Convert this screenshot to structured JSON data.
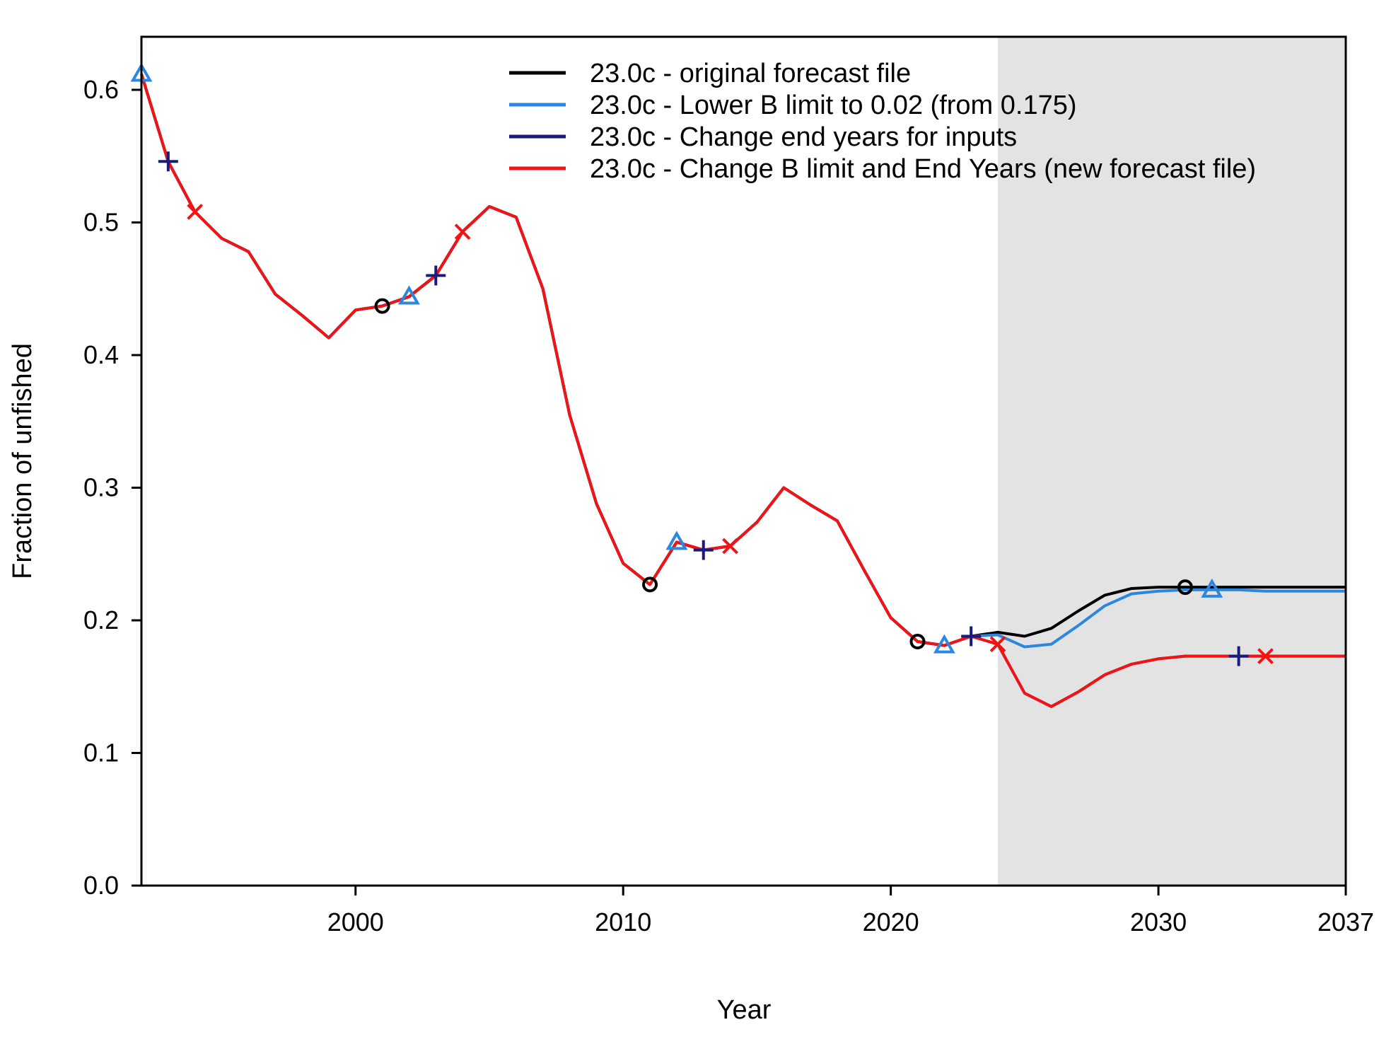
{
  "chart_data": {
    "type": "line",
    "xlabel": "Year",
    "ylabel": "Fraction of unfished",
    "xlim": [
      1992,
      2037
    ],
    "ylim": [
      0,
      0.64
    ],
    "xticks": [
      2000,
      2010,
      2020,
      2030,
      2037
    ],
    "xtick_labels": [
      "2000",
      "2010",
      "2020",
      "2030",
      "2037"
    ],
    "yticks": [
      0.0,
      0.1,
      0.2,
      0.3,
      0.4,
      0.5,
      0.6
    ],
    "ytick_labels": [
      "0.0",
      "0.1",
      "0.2",
      "0.3",
      "0.4",
      "0.5",
      "0.6"
    ],
    "forecast_shading": {
      "from": 2024,
      "to": 2037,
      "color": "#e3e3e3"
    },
    "legend_position": "top-right",
    "grid": false,
    "x": [
      1992,
      1993,
      1994,
      1995,
      1996,
      1997,
      1998,
      1999,
      2000,
      2001,
      2002,
      2003,
      2004,
      2005,
      2006,
      2007,
      2008,
      2009,
      2010,
      2011,
      2012,
      2013,
      2014,
      2015,
      2016,
      2017,
      2018,
      2019,
      2020,
      2021,
      2022,
      2023,
      2024,
      2025,
      2026,
      2027,
      2028,
      2029,
      2030,
      2031,
      2032,
      2033,
      2034,
      2035,
      2036,
      2037
    ],
    "series": [
      {
        "name": "23.0c - original forecast file",
        "color": "#000000",
        "marker": "circle",
        "marker_years": [
          2001,
          2011,
          2021,
          2031
        ],
        "values": [
          0.612,
          0.546,
          0.508,
          0.488,
          0.478,
          0.446,
          0.43,
          0.413,
          0.434,
          0.437,
          0.444,
          0.46,
          0.493,
          0.512,
          0.504,
          0.45,
          0.355,
          0.288,
          0.243,
          0.227,
          0.259,
          0.253,
          0.256,
          0.274,
          0.3,
          0.287,
          0.275,
          0.238,
          0.202,
          0.184,
          0.181,
          0.188,
          0.191,
          0.188,
          0.194,
          0.207,
          0.219,
          0.224,
          0.225,
          0.225,
          0.225,
          0.225,
          0.225,
          0.225,
          0.225,
          0.225
        ]
      },
      {
        "name": "23.0c - Lower B limit to 0.02 (from 0.175)",
        "color": "#2c87df",
        "marker": "triangle",
        "marker_years": [
          1992,
          2002,
          2012,
          2022,
          2032
        ],
        "values": [
          0.612,
          0.546,
          0.508,
          0.488,
          0.478,
          0.446,
          0.43,
          0.413,
          0.434,
          0.437,
          0.444,
          0.46,
          0.493,
          0.512,
          0.504,
          0.45,
          0.355,
          0.288,
          0.243,
          0.227,
          0.259,
          0.253,
          0.256,
          0.274,
          0.3,
          0.287,
          0.275,
          0.238,
          0.202,
          0.184,
          0.181,
          0.188,
          0.189,
          0.18,
          0.182,
          0.196,
          0.211,
          0.22,
          0.222,
          0.223,
          0.223,
          0.223,
          0.222,
          0.222,
          0.222,
          0.222
        ]
      },
      {
        "name": "23.0c - Change end years for inputs",
        "color": "#1a1a7a",
        "marker": "plus",
        "marker_years": [
          1993,
          2003,
          2013,
          2023,
          2033
        ],
        "values": [
          0.612,
          0.546,
          0.508,
          0.488,
          0.478,
          0.446,
          0.43,
          0.413,
          0.434,
          0.437,
          0.444,
          0.46,
          0.493,
          0.512,
          0.504,
          0.45,
          0.355,
          0.288,
          0.243,
          0.227,
          0.259,
          0.253,
          0.256,
          0.274,
          0.3,
          0.287,
          0.275,
          0.238,
          0.202,
          0.184,
          0.181,
          0.188,
          0.182,
          0.145,
          0.135,
          0.146,
          0.159,
          0.167,
          0.171,
          0.173,
          0.173,
          0.173,
          0.173,
          0.173,
          0.173,
          0.173
        ]
      },
      {
        "name": "23.0c - Change B limit and End Years (new forecast file)",
        "color": "#f21414",
        "marker": "x",
        "marker_years": [
          1994,
          2004,
          2014,
          2024,
          2034
        ],
        "values": [
          0.612,
          0.546,
          0.508,
          0.488,
          0.478,
          0.446,
          0.43,
          0.413,
          0.434,
          0.437,
          0.444,
          0.46,
          0.493,
          0.512,
          0.504,
          0.45,
          0.355,
          0.288,
          0.243,
          0.227,
          0.259,
          0.253,
          0.256,
          0.274,
          0.3,
          0.287,
          0.275,
          0.238,
          0.202,
          0.184,
          0.181,
          0.188,
          0.182,
          0.145,
          0.135,
          0.146,
          0.159,
          0.167,
          0.171,
          0.173,
          0.173,
          0.173,
          0.173,
          0.173,
          0.173,
          0.173
        ]
      }
    ]
  }
}
